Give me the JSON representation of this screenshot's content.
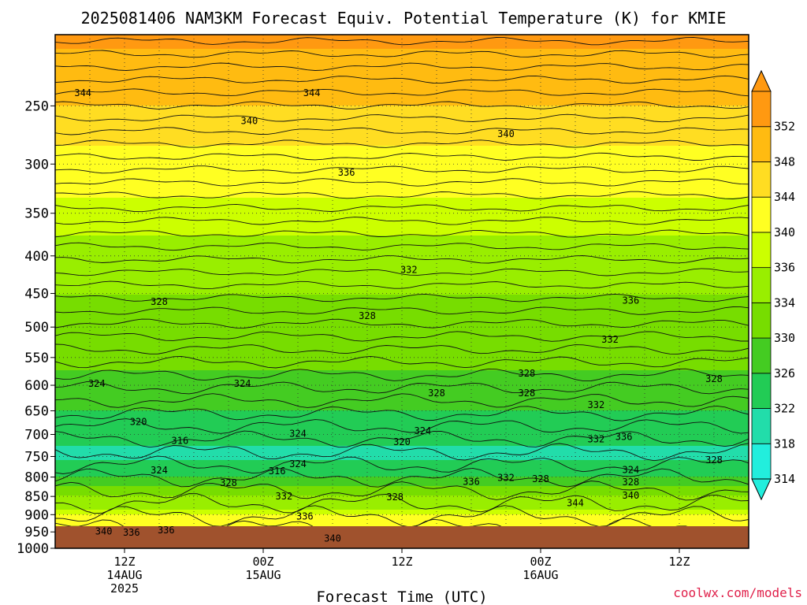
{
  "chart_data": {
    "type": "heatmap",
    "title": "2025081406 NAM3KM Forecast Equiv. Potential Temperature (K) for KMIE",
    "xlabel": "Forecast Time (UTC)",
    "ylabel": "",
    "credit": "coolwx.com/models",
    "y_scale": "log",
    "y_inverted": true,
    "ylim": [
      1000,
      200
    ],
    "y_ticks": [
      250,
      300,
      350,
      400,
      450,
      500,
      550,
      600,
      650,
      700,
      750,
      800,
      850,
      900,
      950,
      1000
    ],
    "x_ticks": [
      {
        "label": "12Z",
        "sub": "14AUG",
        "sub2": "2025"
      },
      {
        "label": "00Z",
        "sub": "15AUG",
        "sub2": ""
      },
      {
        "label": "12Z",
        "sub": "",
        "sub2": ""
      },
      {
        "label": "00Z",
        "sub": "16AUG",
        "sub2": ""
      },
      {
        "label": "12Z",
        "sub": "",
        "sub2": ""
      }
    ],
    "colorbar": {
      "levels": [
        314,
        318,
        322,
        326,
        330,
        334,
        336,
        340,
        344,
        348,
        352
      ],
      "colors": [
        "#22eedd",
        "#22ddaa",
        "#22cc55",
        "#44cc22",
        "#77dd00",
        "#99ee00",
        "#ccff00",
        "#ffff22",
        "#ffdd22",
        "#ffbb11",
        "#ff9911"
      ]
    },
    "profile": [
      {
        "p": 200,
        "theta": 349
      },
      {
        "p": 250,
        "theta": 344
      },
      {
        "p": 300,
        "theta": 338
      },
      {
        "p": 350,
        "theta": 335
      },
      {
        "p": 400,
        "theta": 333
      },
      {
        "p": 450,
        "theta": 330
      },
      {
        "p": 500,
        "theta": 328
      },
      {
        "p": 550,
        "theta": 327
      },
      {
        "p": 600,
        "theta": 325
      },
      {
        "p": 650,
        "theta": 322
      },
      {
        "p": 700,
        "theta": 319
      },
      {
        "p": 750,
        "theta": 317
      },
      {
        "p": 800,
        "theta": 322
      },
      {
        "p": 850,
        "theta": 330
      },
      {
        "p": 900,
        "theta": 336
      },
      {
        "p": 950,
        "theta": 341
      },
      {
        "p": 980,
        "theta": 344
      }
    ],
    "contour_labels": [
      {
        "text": "344",
        "t": 0.04,
        "p": 240
      },
      {
        "text": "344",
        "t": 0.37,
        "p": 240
      },
      {
        "text": "340",
        "t": 0.28,
        "p": 262
      },
      {
        "text": "340",
        "t": 0.65,
        "p": 273
      },
      {
        "text": "336",
        "t": 0.42,
        "p": 308
      },
      {
        "text": "332",
        "t": 0.51,
        "p": 418
      },
      {
        "text": "328",
        "t": 0.15,
        "p": 462
      },
      {
        "text": "328",
        "t": 0.45,
        "p": 483
      },
      {
        "text": "336",
        "t": 0.83,
        "p": 460
      },
      {
        "text": "332",
        "t": 0.8,
        "p": 520
      },
      {
        "text": "328",
        "t": 0.68,
        "p": 578
      },
      {
        "text": "324",
        "t": 0.06,
        "p": 597
      },
      {
        "text": "324",
        "t": 0.27,
        "p": 597
      },
      {
        "text": "328",
        "t": 0.55,
        "p": 615
      },
      {
        "text": "328",
        "t": 0.68,
        "p": 615
      },
      {
        "text": "332",
        "t": 0.78,
        "p": 638
      },
      {
        "text": "328",
        "t": 0.95,
        "p": 588
      },
      {
        "text": "320",
        "t": 0.12,
        "p": 673
      },
      {
        "text": "316",
        "t": 0.18,
        "p": 714
      },
      {
        "text": "324",
        "t": 0.35,
        "p": 698
      },
      {
        "text": "320",
        "t": 0.5,
        "p": 717
      },
      {
        "text": "324",
        "t": 0.53,
        "p": 692
      },
      {
        "text": "332",
        "t": 0.78,
        "p": 710
      },
      {
        "text": "336",
        "t": 0.82,
        "p": 705
      },
      {
        "text": "328",
        "t": 0.95,
        "p": 758
      },
      {
        "text": "324",
        "t": 0.15,
        "p": 783
      },
      {
        "text": "324",
        "t": 0.35,
        "p": 768
      },
      {
        "text": "316",
        "t": 0.32,
        "p": 785
      },
      {
        "text": "328",
        "t": 0.25,
        "p": 815
      },
      {
        "text": "332",
        "t": 0.33,
        "p": 850
      },
      {
        "text": "328",
        "t": 0.49,
        "p": 852
      },
      {
        "text": "336",
        "t": 0.6,
        "p": 812
      },
      {
        "text": "332",
        "t": 0.65,
        "p": 802
      },
      {
        "text": "328",
        "t": 0.7,
        "p": 805
      },
      {
        "text": "324",
        "t": 0.83,
        "p": 782
      },
      {
        "text": "328",
        "t": 0.83,
        "p": 813
      },
      {
        "text": "340",
        "t": 0.83,
        "p": 848
      },
      {
        "text": "344",
        "t": 0.75,
        "p": 868
      },
      {
        "text": "336",
        "t": 0.36,
        "p": 905
      },
      {
        "text": "340",
        "t": 0.07,
        "p": 948
      },
      {
        "text": "336",
        "t": 0.11,
        "p": 952
      },
      {
        "text": "336",
        "t": 0.16,
        "p": 945
      },
      {
        "text": "340",
        "t": 0.4,
        "p": 970
      }
    ]
  }
}
